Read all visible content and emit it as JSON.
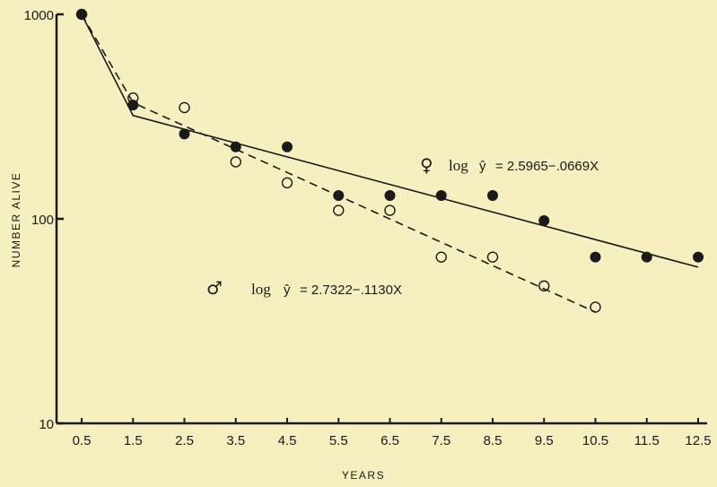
{
  "chart_data": {
    "type": "scatter",
    "title": "",
    "xlabel": "YEARS",
    "ylabel": "NUMBER ALIVE",
    "y_scale": "log",
    "ylim": [
      10,
      1000
    ],
    "xlim": [
      0.5,
      12.5
    ],
    "x_ticks": [
      "0.5",
      "1.5",
      "2.5",
      "3.5",
      "4.5",
      "5.5",
      "6.5",
      "7.5",
      "8.5",
      "9.5",
      "10.5",
      "11.5",
      "12.5"
    ],
    "y_ticks": [
      "10",
      "100",
      "1000"
    ],
    "grid": false,
    "series": [
      {
        "marker": "filled-circle",
        "line_style": "solid",
        "x": [
          0.5,
          1.5,
          2.5,
          3.5,
          4.5,
          5.5,
          6.5,
          7.5,
          8.5,
          9.5,
          10.5,
          11.5,
          12.5
        ],
        "y": [
          1000,
          360,
          260,
          225,
          225,
          130,
          130,
          130,
          130,
          98,
          65,
          65,
          65
        ]
      },
      {
        "marker": "open-circle",
        "line_style": "dashed",
        "x": [
          0.5,
          1.5,
          2.5,
          3.5,
          4.5,
          5.5,
          6.5,
          7.5,
          8.5,
          9.5,
          10.5
        ],
        "y": [
          1000,
          390,
          350,
          190,
          150,
          110,
          110,
          65,
          65,
          47,
          37
        ]
      }
    ],
    "fit_lines": [
      {
        "line_style": "solid",
        "points": [
          [
            0.5,
            1000
          ],
          [
            1.5,
            320
          ],
          [
            12.5,
            58
          ]
        ]
      },
      {
        "line_style": "dashed",
        "points": [
          [
            0.5,
            1000
          ],
          [
            1.5,
            370
          ],
          [
            10.5,
            35
          ]
        ]
      }
    ],
    "annotations": {
      "female": {
        "symbol": "♀",
        "log": "log",
        "y_hat": "ŷ",
        "rhs": "= 2.5965−.0669X"
      },
      "male": {
        "symbol": "♂",
        "log": "log",
        "y_hat": "ŷ",
        "rhs": "= 2.7322−.1130X"
      }
    }
  }
}
